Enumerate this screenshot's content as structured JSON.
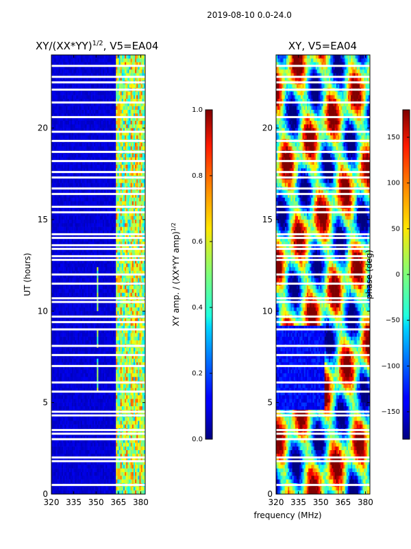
{
  "figure": {
    "suptitle": "2019-08-10 0.0-24.0"
  },
  "chart_data": [
    {
      "type": "heatmap",
      "title": "XY/(XX*YY)",
      "title_exponent": "1/2",
      "title_suffix": ", V5=EA04",
      "xlabel": "",
      "ylabel": "UT (hours)",
      "xlim": [
        320,
        383
      ],
      "ylim": [
        0,
        24
      ],
      "xticks": [
        "320",
        "335",
        "350",
        "365",
        "380"
      ],
      "yticks": [
        "0",
        "5",
        "10",
        "15",
        "20"
      ],
      "colorbar": {
        "label": "XY amp. / (XX*YY amp)",
        "label_exponent": "1/2",
        "range": [
          0.0,
          1.0
        ],
        "ticks": [
          "0.0",
          "0.2",
          "0.4",
          "0.6",
          "0.8",
          "1.0"
        ]
      },
      "flagged_ut_hours": [
        0.5,
        1.8,
        2.0,
        3.0,
        3.3,
        3.5,
        4.3,
        4.5,
        5.6,
        6.1,
        7.0,
        7.6,
        8.1,
        9.0,
        9.4,
        9.7,
        10.5,
        10.7,
        11.5,
        12.0,
        12.8,
        13.0,
        13.4,
        13.6,
        14.0,
        14.2,
        15.4,
        15.7,
        16.4,
        16.7,
        17.3,
        17.6,
        18.2,
        18.7,
        19.3,
        19.8,
        20.6,
        21.4,
        22.1,
        22.5,
        22.8,
        23.4
      ]
    },
    {
      "type": "heatmap",
      "title": "XY, V5=EA04",
      "xlabel": "frequency (MHz)",
      "ylabel": "",
      "xlim": [
        320,
        383
      ],
      "ylim": [
        0,
        24
      ],
      "xticks": [
        "320",
        "335",
        "350",
        "365",
        "380"
      ],
      "yticks": [
        "0",
        "5",
        "10",
        "15",
        "20"
      ],
      "colorbar": {
        "label": "phase (deg)",
        "range": [
          -180,
          180
        ],
        "ticks": [
          "−150",
          "−100",
          "−50",
          "0",
          "50",
          "100",
          "150"
        ]
      },
      "flagged_ut_hours": [
        0.5,
        1.8,
        2.0,
        3.0,
        3.3,
        3.5,
        4.3,
        4.5,
        5.6,
        6.1,
        7.0,
        7.6,
        8.1,
        9.0,
        9.4,
        9.7,
        10.5,
        10.7,
        11.5,
        12.0,
        12.8,
        13.0,
        13.4,
        13.6,
        14.0,
        14.2,
        15.4,
        15.7,
        16.4,
        16.7,
        17.3,
        17.6,
        18.2,
        18.7,
        19.3,
        19.8,
        20.6,
        21.4,
        22.1,
        22.5,
        22.8,
        23.4
      ]
    }
  ]
}
